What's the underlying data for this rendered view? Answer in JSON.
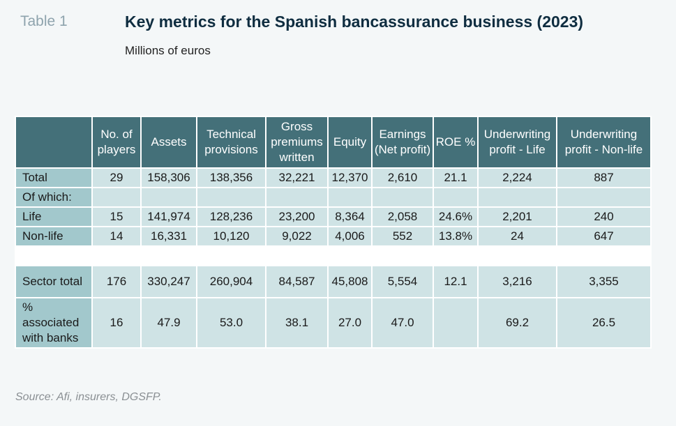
{
  "header": {
    "table_label": "Table 1",
    "title": "Key metrics for the Spanish bancassurance business (2023)",
    "subtitle": "Millions of euros"
  },
  "table": {
    "columns": [
      "",
      "No. of players",
      "Assets",
      "Technical provisions",
      "Gross premiums written",
      "Equity",
      "Earnings (Net profit)",
      "ROE %",
      "Underwriting profit - Life",
      "Underwriting profit - Non-life"
    ],
    "rows": [
      {
        "label": "Total",
        "values": [
          "29",
          "158,306",
          "138,356",
          "32,221",
          "12,370",
          "2,610",
          "21.1",
          "2,224",
          "887"
        ]
      },
      {
        "label": "Of which:",
        "values": [
          "",
          "",
          "",
          "",
          "",
          "",
          "",
          "",
          ""
        ]
      },
      {
        "label": "Life",
        "values": [
          "15",
          "141,974",
          "128,236",
          "23,200",
          "8,364",
          "2,058",
          "24.6%",
          "2,201",
          "240"
        ]
      },
      {
        "label": "Non-life",
        "values": [
          "14",
          "16,331",
          "10,120",
          "9,022",
          "4,006",
          "552",
          "13.8%",
          "24",
          "647"
        ]
      },
      {
        "label": "Sector total",
        "values": [
          "176",
          "330,247",
          "260,904",
          "84,587",
          "45,808",
          "5,554",
          "12.1",
          "3,216",
          "3,355"
        ]
      },
      {
        "label": "% associated with banks",
        "values": [
          "16",
          "47.9",
          "53.0",
          "38.1",
          "27.0",
          "47.0",
          "",
          "69.2",
          "26.5"
        ]
      }
    ]
  },
  "footer": {
    "source": "Source: Afi, insurers, DGSFP."
  }
}
